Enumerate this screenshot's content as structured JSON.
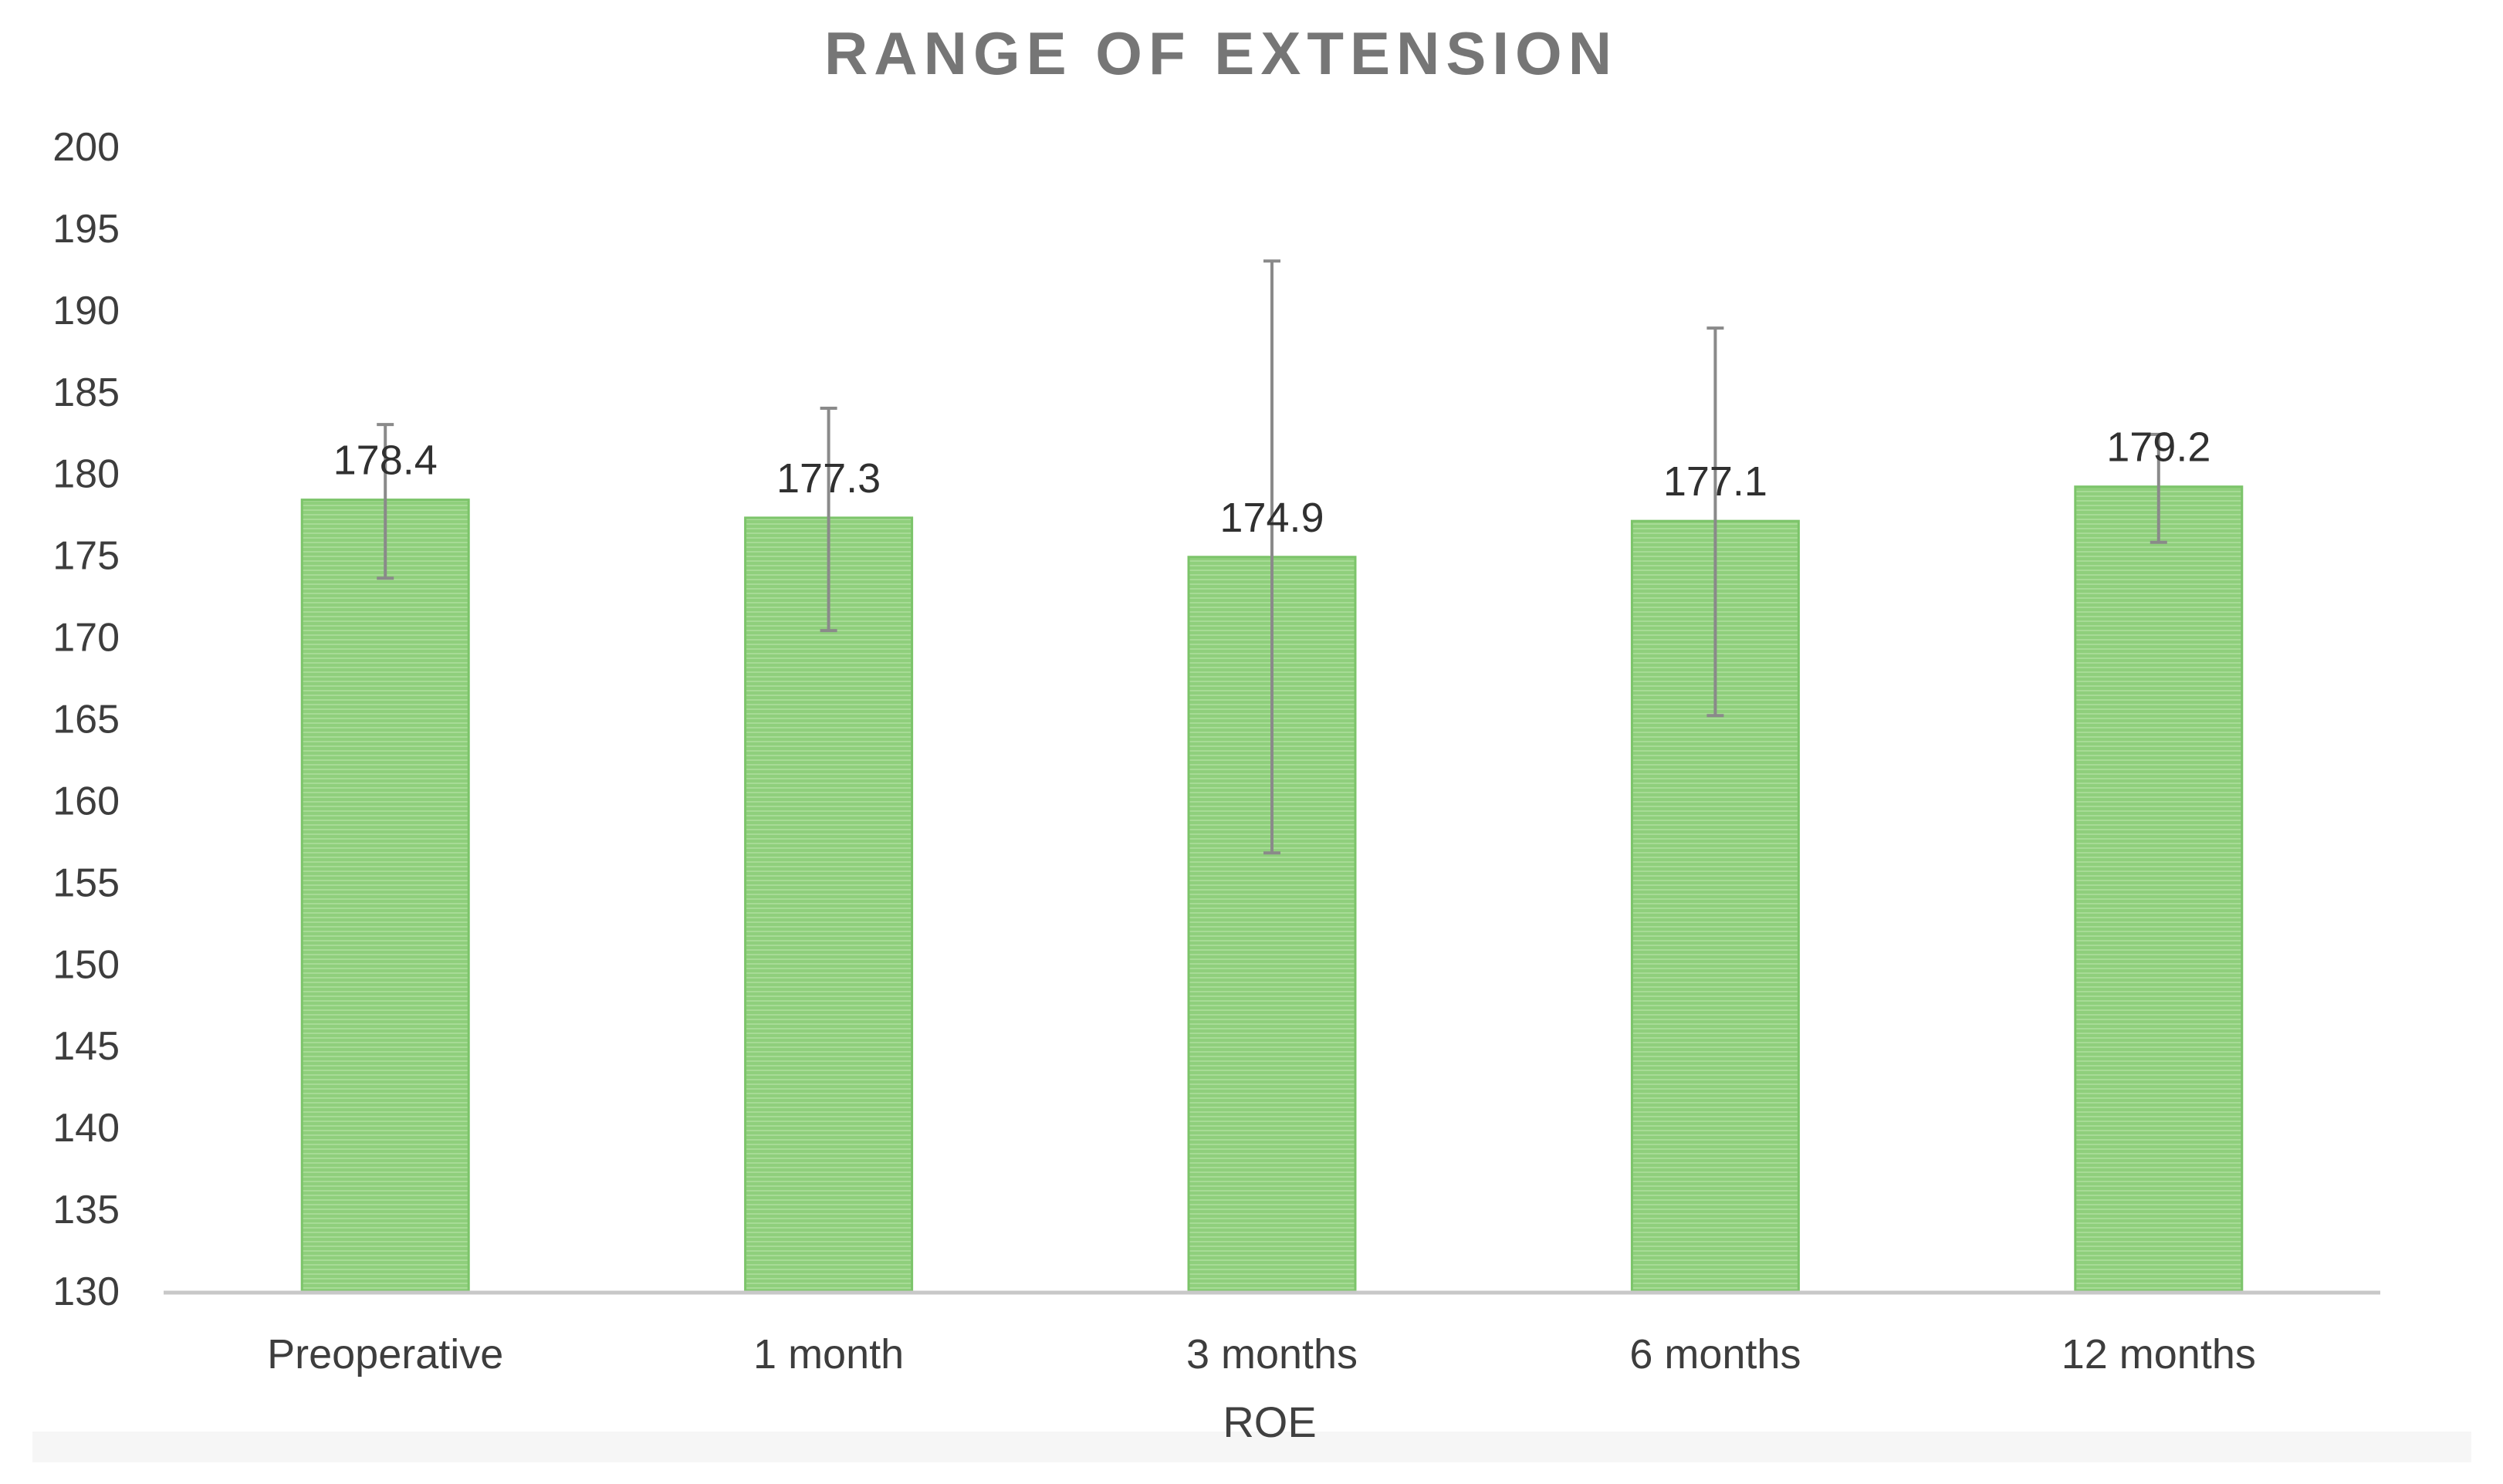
{
  "chart_data": {
    "type": "bar",
    "title": "RANGE OF EXTENSION",
    "xlabel": "ROE",
    "ylabel": "",
    "categories": [
      "Preoperative",
      "1 month",
      "3 months",
      "6 months",
      "12 months"
    ],
    "values": [
      178.4,
      177.3,
      174.9,
      177.1,
      179.2
    ],
    "value_labels": [
      "178.4",
      "177.3",
      "174.9",
      "177.1",
      "179.2"
    ],
    "error_bars": {
      "low": [
        173.6,
        170.4,
        156.8,
        165.2,
        175.8
      ],
      "high": [
        183.0,
        184.0,
        193.0,
        188.9,
        182.4
      ]
    },
    "ylim": [
      130,
      200
    ],
    "yticks": [
      130,
      135,
      140,
      145,
      150,
      155,
      160,
      165,
      170,
      175,
      180,
      185,
      190,
      195,
      200
    ],
    "grid": false,
    "legend": "none",
    "colors": {
      "bar_fill": "#8fcf7c",
      "bar_stripe": "#a7db96",
      "bar_edge": "#7cc46a",
      "error_bar": "#8a8a8a",
      "axis": "#c8c8c8",
      "title": "#767676"
    }
  }
}
